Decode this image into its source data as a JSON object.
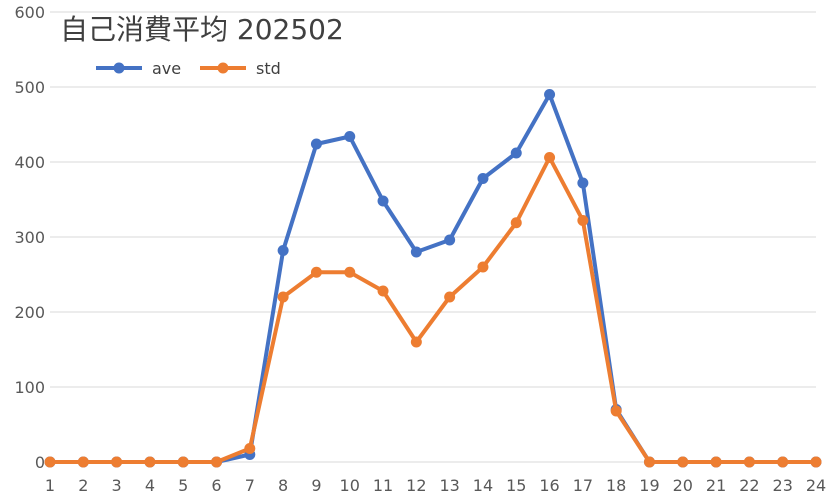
{
  "chart_data": {
    "type": "line",
    "title": "自己消費平均  202502",
    "xlabel": "",
    "ylabel": "",
    "x": [
      1,
      2,
      3,
      4,
      5,
      6,
      7,
      8,
      9,
      10,
      11,
      12,
      13,
      14,
      15,
      16,
      17,
      18,
      19,
      20,
      21,
      22,
      23,
      24
    ],
    "ylim": [
      0,
      600
    ],
    "yticks": [
      0,
      100,
      200,
      300,
      400,
      500,
      600
    ],
    "grid": true,
    "legend_position": "top-left",
    "series": [
      {
        "name": "ave",
        "color": "#4472C4",
        "values": [
          0,
          0,
          0,
          0,
          0,
          0,
          10,
          282,
          424,
          434,
          348,
          280,
          296,
          378,
          412,
          490,
          372,
          70,
          0,
          0,
          0,
          0,
          0,
          0
        ]
      },
      {
        "name": "std",
        "color": "#ED7D31",
        "values": [
          0,
          0,
          0,
          0,
          0,
          0,
          18,
          220,
          253,
          253,
          228,
          160,
          220,
          260,
          319,
          406,
          322,
          68,
          0,
          0,
          0,
          0,
          0,
          0
        ]
      }
    ]
  }
}
